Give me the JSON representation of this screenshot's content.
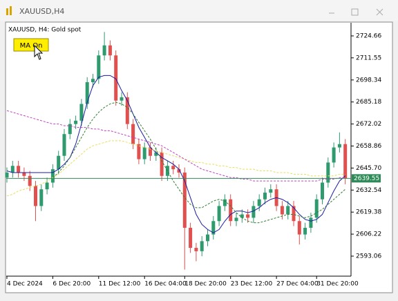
{
  "window": {
    "title": "XAUUSD,H4"
  },
  "chart_data": {
    "type": "candlestick",
    "title": "XAUUSD, H4:  Gold spot",
    "button": "MA On",
    "categories": [
      "4 Dec 2024",
      null,
      null,
      null,
      null,
      null,
      null,
      null,
      "6 Dec 20:00",
      null,
      null,
      null,
      null,
      null,
      null,
      null,
      "11 Dec 12:00",
      null,
      null,
      null,
      null,
      null,
      null,
      null,
      "16 Dec 04:00",
      null,
      null,
      null,
      null,
      null,
      null,
      "18 Dec 20:00",
      null,
      null,
      null,
      null,
      null,
      null,
      null,
      "23 Dec 12:00",
      null,
      null,
      null,
      null,
      null,
      null,
      null,
      "27 Dec 04:00",
      null,
      null,
      null,
      null,
      null,
      null,
      "31 Dec 20:00",
      null,
      null,
      null,
      null,
      null
    ],
    "open": [
      2640,
      2643,
      2647,
      2643,
      2641,
      2635,
      2623,
      2633,
      2637,
      2645,
      2653,
      2666,
      2672,
      2674,
      2684,
      2697,
      2699,
      2713,
      2719,
      2713,
      2686,
      2688,
      2672,
      2660,
      2651,
      2658,
      2653,
      2655,
      2641,
      2647,
      2645,
      2643,
      2610,
      2598,
      2596,
      2602,
      2606,
      2614,
      2623,
      2627,
      2614,
      2616,
      2618,
      2616,
      2623,
      2627,
      2631,
      2633,
      2623,
      2618,
      2623,
      2614,
      2606,
      2610,
      2616,
      2627,
      2637,
      2649,
      2658,
      2660
    ],
    "high": [
      2646,
      2650,
      2650,
      2646,
      2644,
      2638,
      2636,
      2640,
      2648,
      2656,
      2669,
      2675,
      2677,
      2687,
      2700,
      2702,
      2716,
      2727,
      2722,
      2716,
      2691,
      2691,
      2675,
      2663,
      2661,
      2661,
      2658,
      2658,
      2650,
      2650,
      2648,
      2646,
      2613,
      2601,
      2605,
      2609,
      2617,
      2626,
      2630,
      2630,
      2619,
      2621,
      2621,
      2626,
      2630,
      2634,
      2636,
      2636,
      2626,
      2626,
      2626,
      2617,
      2613,
      2619,
      2630,
      2640,
      2652,
      2661,
      2667,
      2663
    ],
    "low": [
      2637,
      2640,
      2640,
      2638,
      2632,
      2614,
      2620,
      2630,
      2634,
      2642,
      2650,
      2663,
      2669,
      2671,
      2681,
      2694,
      2696,
      2710,
      2710,
      2683,
      2683,
      2669,
      2657,
      2648,
      2648,
      2650,
      2650,
      2638,
      2638,
      2642,
      2640,
      2585,
      2595,
      2590,
      2593,
      2599,
      2603,
      2611,
      2620,
      2611,
      2611,
      2613,
      2613,
      2613,
      2620,
      2624,
      2628,
      2620,
      2615,
      2615,
      2611,
      2600,
      2603,
      2607,
      2613,
      2624,
      2634,
      2646,
      2655,
      2636
    ],
    "close": [
      2643,
      2647,
      2643,
      2641,
      2635,
      2623,
      2633,
      2637,
      2645,
      2653,
      2666,
      2672,
      2674,
      2684,
      2697,
      2699,
      2713,
      2719,
      2713,
      2686,
      2688,
      2672,
      2660,
      2651,
      2658,
      2653,
      2655,
      2641,
      2647,
      2645,
      2643,
      2610,
      2598,
      2596,
      2602,
      2606,
      2614,
      2623,
      2627,
      2614,
      2616,
      2618,
      2616,
      2623,
      2627,
      2631,
      2633,
      2623,
      2618,
      2623,
      2614,
      2606,
      2610,
      2616,
      2627,
      2637,
      2649,
      2658,
      2660,
      2639.55
    ],
    "up_color": "#2e9a6e",
    "down_color": "#e0504f",
    "series": [
      {
        "color": "#1a1aa6",
        "dashed": false,
        "values": [
          2644,
          2643,
          2643,
          2643,
          2643,
          2643,
          2643,
          2643,
          2643,
          2645,
          2648,
          2652,
          2660,
          2672,
          2685,
          2695,
          2700,
          2701,
          2701,
          2699,
          2692,
          2686,
          2678,
          2670,
          2664,
          2658,
          2655,
          2652,
          2650,
          2648,
          2645,
          2638,
          2628,
          2618,
          2612,
          2609,
          2607,
          2609,
          2614,
          2618,
          2620,
          2620,
          2619,
          2620,
          2622,
          2625,
          2627,
          2628,
          2627,
          2625,
          2622,
          2618,
          2615,
          2614,
          2615,
          2618,
          2625,
          2632,
          2638,
          2641
        ]
      },
      {
        "color": "#2f7d2f",
        "dashed": true,
        "values": [
          null,
          null,
          null,
          null,
          null,
          null,
          null,
          null,
          2640,
          2643,
          2647,
          2652,
          2658,
          2664,
          2670,
          2675,
          2679,
          2682,
          2684,
          2685,
          2684,
          2682,
          2678,
          2673,
          2668,
          2663,
          2657,
          2650,
          2644,
          2638,
          2633,
          2628,
          2624,
          2622,
          2622,
          2624,
          2626,
          2627,
          2626,
          2623,
          2619,
          2616,
          2614,
          2613,
          2613,
          2614,
          2615,
          2616,
          2617,
          2618,
          2618,
          2617,
          2616,
          2617,
          2619,
          2621,
          2624,
          2627,
          2630,
          2633
        ]
      },
      {
        "color": "#e6e05a",
        "dashed": true,
        "values": [
          2629,
          2630,
          2632,
          2633,
          2634,
          2635,
          2636,
          2638,
          2640,
          2642,
          2645,
          2648,
          2651,
          2654,
          2657,
          2659,
          2660,
          2661,
          2662,
          2662,
          2662,
          2661,
          2660,
          2659,
          2658,
          2657,
          2656,
          2655,
          2654,
          2653,
          2652,
          2651,
          2650,
          2649,
          2649,
          2648,
          2648,
          2647,
          2647,
          2646,
          2646,
          2645,
          2645,
          2645,
          2644,
          2644,
          2644,
          2643,
          2643,
          2643,
          2642,
          2642,
          2642,
          2641,
          2641,
          2641,
          2641,
          2641,
          2642,
          2642
        ]
      },
      {
        "color": "#c040c0",
        "dashed": true,
        "values": [
          2680,
          2679,
          2678,
          2677,
          2676,
          2675,
          2674,
          2673,
          2672,
          2672,
          2671,
          2671,
          2670,
          2670,
          2670,
          2669,
          2669,
          2668,
          2668,
          2667,
          2666,
          2665,
          2664,
          2663,
          2662,
          2661,
          2660,
          2659,
          2657,
          2655,
          2653,
          2651,
          2649,
          2647,
          2645,
          2644,
          2643,
          2642,
          2641,
          2640,
          2640,
          2639,
          2639,
          2638,
          2638,
          2638,
          2638,
          2638,
          2638,
          2638,
          2638,
          2638,
          2638,
          2638,
          2638,
          2639,
          2639,
          2639,
          2640,
          2640
        ]
      }
    ],
    "last_price": 2639.55,
    "last_price_color": "#2e8b57",
    "ylim": [
      2581.1,
      2732.09
    ],
    "yticks": [
      2724.66,
      2711.55,
      2698.34,
      2685.18,
      2672.02,
      2658.86,
      {
        "value": 2645.7,
        "label": "2645.70"
      },
      2632.54,
      2619.38,
      2606.22,
      2593.06
    ],
    "grid": false
  }
}
